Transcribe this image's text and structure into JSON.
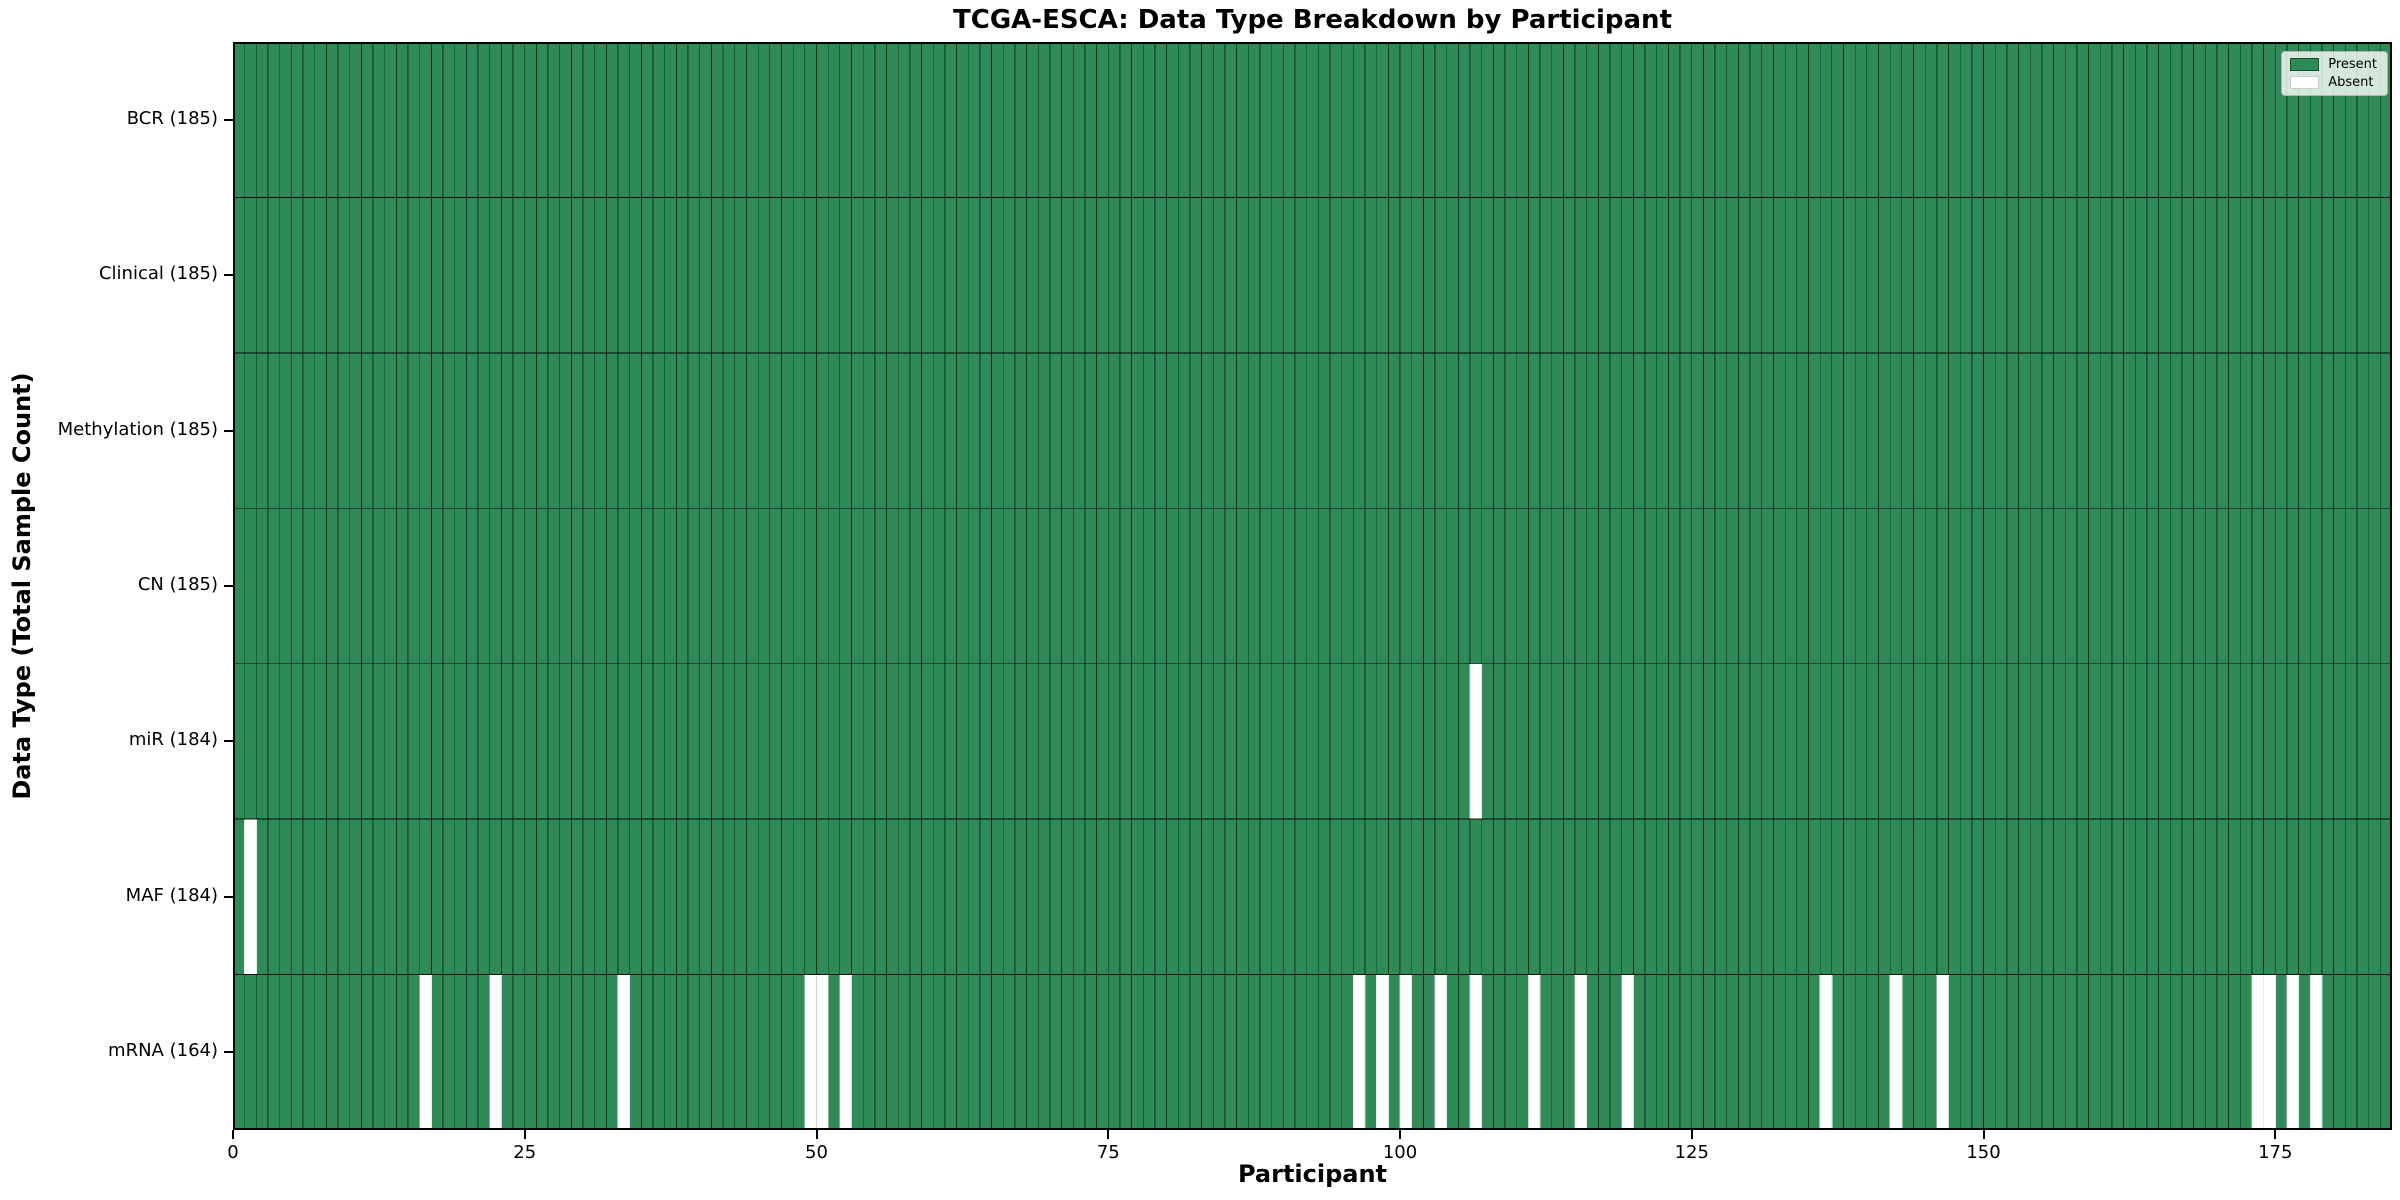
{
  "title": "TCGA-ESCA: Data Type Breakdown by Participant",
  "chart_data": {
    "type": "heatmap",
    "title": "TCGA-ESCA: Data Type Breakdown by Participant",
    "xlabel": "Participant",
    "ylabel": "Data Type (Total Sample Count)",
    "x_ticks": [
      0,
      25,
      50,
      75,
      100,
      125,
      150,
      175
    ],
    "n_participants": 185,
    "x_range": [
      0,
      185
    ],
    "grid": false,
    "legend_position": "upper right",
    "legend": [
      {
        "label": "Present",
        "color": "#2e8b57"
      },
      {
        "label": "Absent",
        "color": "#ffffff"
      }
    ],
    "rows": [
      {
        "name": "BCR",
        "label": "BCR (185)",
        "present_count": 185,
        "absent": []
      },
      {
        "name": "Clinical",
        "label": "Clinical (185)",
        "present_count": 185,
        "absent": []
      },
      {
        "name": "Methylation",
        "label": "Methylation (185)",
        "present_count": 185,
        "absent": []
      },
      {
        "name": "CN",
        "label": "CN (185)",
        "present_count": 185,
        "absent": []
      },
      {
        "name": "miR",
        "label": "miR (184)",
        "present_count": 184,
        "absent": [
          106
        ]
      },
      {
        "name": "MAF",
        "label": "MAF (184)",
        "present_count": 184,
        "absent": [
          1
        ]
      },
      {
        "name": "mRNA",
        "label": "mRNA (164)",
        "present_count": 164,
        "absent": [
          16,
          22,
          33,
          49,
          50,
          52,
          96,
          98,
          100,
          103,
          106,
          111,
          115,
          119,
          136,
          142,
          146,
          173,
          174,
          176,
          178
        ]
      }
    ],
    "colors": {
      "present": "#2e8b57",
      "absent": "#ffffff",
      "cell_edge": "rgba(0,0,0,0.55)",
      "absent_edge": "#d4d4d4",
      "spine": "#000000",
      "row_divider": "rgba(0,0,0,0.75)"
    }
  }
}
